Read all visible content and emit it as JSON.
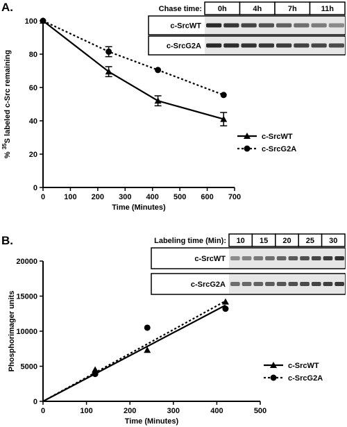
{
  "chart_data": [
    {
      "type": "line",
      "panel_label": "A.",
      "xlabel": "Time (Minutes)",
      "ylabel": {
        "prefix": "% ",
        "sup": "35",
        "text": "S labeled c-Src remaining"
      },
      "xlim": [
        0,
        700
      ],
      "xticks": [
        0,
        100,
        200,
        300,
        400,
        500,
        600,
        700
      ],
      "ylim": [
        0,
        100
      ],
      "yticks": [
        0,
        20,
        40,
        60,
        80,
        100
      ],
      "legend": "right",
      "gel": {
        "header": "Chase time:",
        "lanes": [
          "0h",
          "4h",
          "7h",
          "11h"
        ],
        "rows": [
          "c-SrcWT",
          "c-SrcG2A"
        ]
      },
      "series": [
        {
          "name": "c-SrcWT",
          "color": "#000000",
          "marker": "triangle",
          "dash": "solid",
          "connect": true,
          "x": [
            0,
            240,
            420,
            660
          ],
          "values": [
            100,
            69.5,
            52,
            41
          ],
          "errors": [
            null,
            3,
            3,
            4
          ]
        },
        {
          "name": "c-SrcG2A",
          "color": "#000000",
          "marker": "circle",
          "dash": "dotted",
          "connect": true,
          "x": [
            0,
            240,
            420,
            660
          ],
          "values": [
            100,
            81.5,
            70.5,
            55.5
          ],
          "errors": [
            null,
            3,
            null,
            null
          ]
        }
      ]
    },
    {
      "type": "scatter",
      "panel_label": "B.",
      "xlabel": "Time (Minutes)",
      "ylabel": {
        "text": "Phosphorimager units"
      },
      "xlim": [
        0,
        500
      ],
      "xticks": [
        0,
        100,
        200,
        300,
        400,
        500
      ],
      "ylim": [
        0,
        20000
      ],
      "yticks": [
        0,
        5000,
        10000,
        15000,
        20000
      ],
      "legend": "right",
      "gel": {
        "header": "Labeling time (Min):",
        "lanes": [
          "10",
          "15",
          "20",
          "25",
          "30"
        ],
        "rows": [
          "c-SrcWT",
          "c-SrcG2A"
        ]
      },
      "series": [
        {
          "name": "c-SrcWT",
          "color": "#000000",
          "marker": "triangle",
          "dash": "solid",
          "connect": false,
          "x": [
            120,
            240,
            420
          ],
          "values": [
            4500,
            7300,
            14200
          ],
          "fit": {
            "x": [
              0,
              420
            ],
            "y": [
              0,
              13700
            ]
          }
        },
        {
          "name": "c-SrcG2A",
          "color": "#000000",
          "marker": "circle",
          "dash": "dotted",
          "connect": false,
          "x": [
            120,
            240,
            420
          ],
          "values": [
            3900,
            10500,
            13200
          ],
          "fit": {
            "x": [
              0,
              420
            ],
            "y": [
              0,
              14300
            ]
          }
        }
      ]
    }
  ]
}
